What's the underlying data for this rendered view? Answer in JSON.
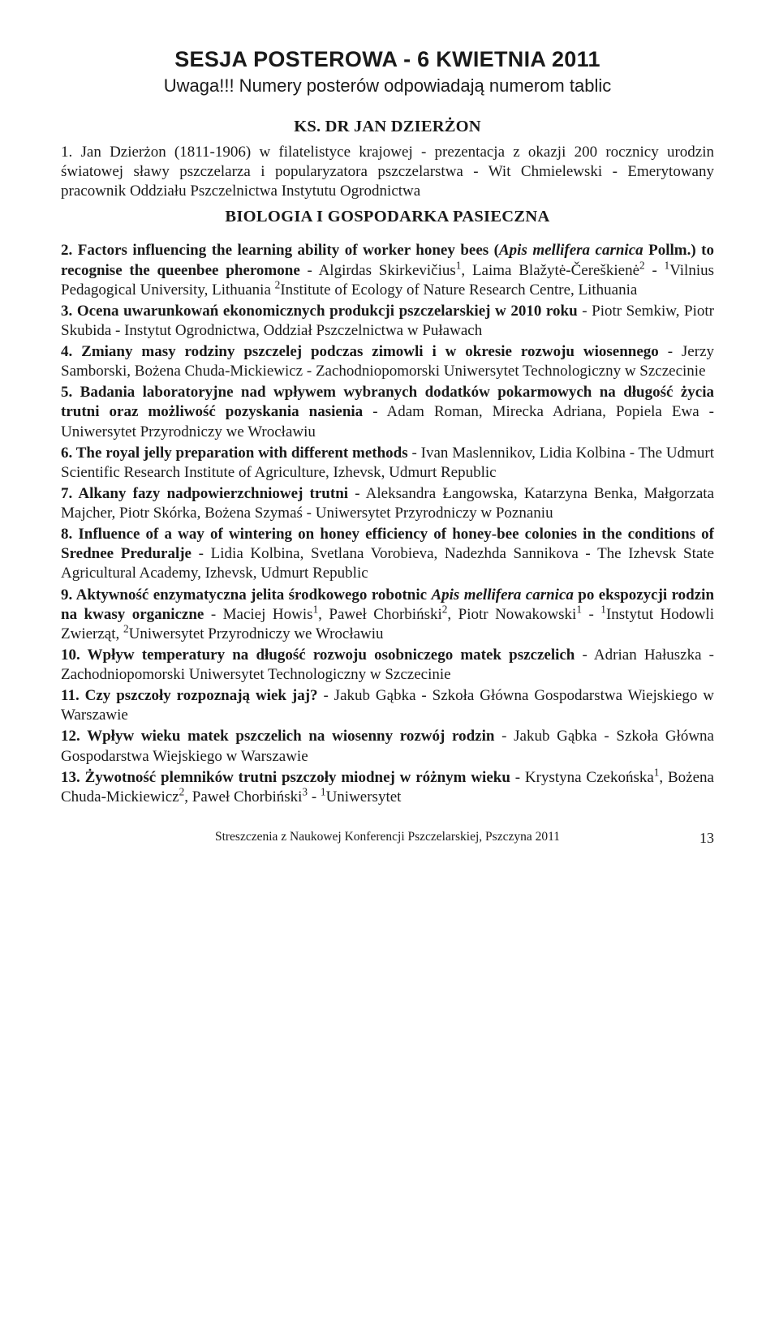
{
  "colors": {
    "text": "#1a1a1a",
    "background": "#ffffff"
  },
  "typography": {
    "body_family": "Times New Roman",
    "heading_family": "Arial",
    "body_size_pt": 19,
    "main_title_size_pt": 27,
    "subtitle_size_pt": 22,
    "person_size_pt": 20.5,
    "section_head_size_pt": 20.5,
    "footer_size_pt": 15.5,
    "page_num_size_pt": 18,
    "line_height": 1.27
  },
  "header": {
    "main_title": "SESJA POSTEROWA - 6 KWIETNIA 2011",
    "subtitle": "Uwaga!!! Numery posterów odpowiadają numerom tablic",
    "person": "KS. DR JAN DZIERŻON"
  },
  "item1": {
    "num": "1.",
    "title": "Jan Dzierżon (1811-1906) w filatelistyce krajowej - prezentacja z okazji 200 rocznicy urodzin światowej sławy pszczelarza i popularyzatora pszczelarstwa",
    "rest": " - Wit Chmielewski - Emerytowany pracownik Oddziału Pszczelnictwa Instytutu Ogrodnictwa"
  },
  "section_head": "BIOLOGIA I GOSPODARKA PASIECZNA",
  "items": [
    {
      "num": "2.",
      "title_html": "Factors influencing the learning ability of worker honey bees (<span class=\"italic\">Apis mellifera carnica</span> Pollm.) to recognise the queenbee pheromone",
      "rest_html": " - Algirdas Skirkevičius<sup>1</sup>, Laima Blažytė-Čereškienė<sup>2</sup> - <sup>1</sup>Vilnius Pedagogical University, Lithuania <sup>2</sup>Institute of Ecology of Nature Research Centre, Lithuania"
    },
    {
      "num": "3.",
      "title_html": "Ocena uwarunkowań ekonomicznych produkcji pszczelarskiej w 2010 roku",
      "rest_html": " - Piotr Semkiw, Piotr Skubida - Instytut Ogrodnictwa, Oddział Pszczelnictwa w Puławach"
    },
    {
      "num": "4.",
      "title_html": "Zmiany masy rodziny pszczelej podczas zimowli i w okresie rozwoju wiosennego",
      "rest_html": " - Jerzy Samborski, Bożena Chuda-Mickiewicz - Zachodniopomorski Uniwersytet Technologiczny w Szczecinie"
    },
    {
      "num": "5.",
      "title_html": "Badania laboratoryjne nad wpływem wybranych dodatków pokarmowych na długość życia trutni oraz możliwość pozyskania nasienia",
      "rest_html": " - Adam Roman, Mirecka Adriana, Popiela Ewa - Uniwersytet Przyrodniczy we Wrocławiu"
    },
    {
      "num": "6.",
      "title_html": "The royal jelly preparation with different methods",
      "rest_html": " - Ivan Maslennikov, Lidia Kolbina - The Udmurt Scientific Research Institute of Agriculture, Izhevsk, Udmurt Republic"
    },
    {
      "num": "7.",
      "title_html": "Alkany fazy nadpowierzchniowej trutni",
      "rest_html": " - Aleksandra Łangowska, Katarzyna Benka, Małgorzata Majcher, Piotr Skórka, Bożena Szymaś - Uniwersytet Przyrodniczy w Poznaniu"
    },
    {
      "num": "8.",
      "title_html": "Influence of a way of wintering on honey efficiency of honey-bee colonies in the conditions of Srednee Preduralje",
      "rest_html": " - Lidia Kolbina, Svetlana Vorobieva, Nadezhda Sannikova - The Izhevsk State Agricultural Academy, Izhevsk, Udmurt Republic"
    },
    {
      "num": "9.",
      "title_html": "Aktywność enzymatyczna jelita środkowego robotnic <span class=\"italic\">Apis mellifera carnica</span> po ekspozycji rodzin na kwasy organiczne",
      "rest_html": " - Maciej Howis<sup>1</sup>, Paweł Chorbiński<sup>2</sup>, Piotr Nowakowski<sup>1</sup> - <sup>1</sup>Instytut Hodowli Zwierząt, <sup>2</sup>Uniwersytet Przyrodniczy we Wrocławiu"
    },
    {
      "num": "10.",
      "title_html": "Wpływ temperatury na długość rozwoju osobniczego matek pszczelich",
      "rest_html": " - Adrian Hałuszka - Zachodniopomorski Uniwersytet Technologiczny w Szczecinie"
    },
    {
      "num": "11.",
      "title_html": "Czy pszczoły rozpoznają wiek jaj?",
      "rest_html": " - Jakub Gąbka - Szkoła Główna Gospodarstwa Wiejskiego w Warszawie"
    },
    {
      "num": "12.",
      "title_html": "Wpływ wieku matek pszczelich na wiosenny rozwój rodzin",
      "rest_html": " - Jakub Gąbka - Szkoła Główna Gospodarstwa Wiejskiego w Warszawie"
    },
    {
      "num": "13.",
      "title_html": "Żywotność plemników trutni pszczoły miodnej w różnym wieku",
      "rest_html": " - Krystyna Czekońska<sup>1</sup>, Bożena Chuda-Mickiewicz<sup>2</sup>, Paweł Chorbiński<sup>3</sup> - <sup>1</sup>Uniwersytet"
    }
  ],
  "footer": {
    "text": "Streszczenia z Naukowej Konferencji Pszczelarskiej, Pszczyna 2011",
    "page": "13"
  }
}
